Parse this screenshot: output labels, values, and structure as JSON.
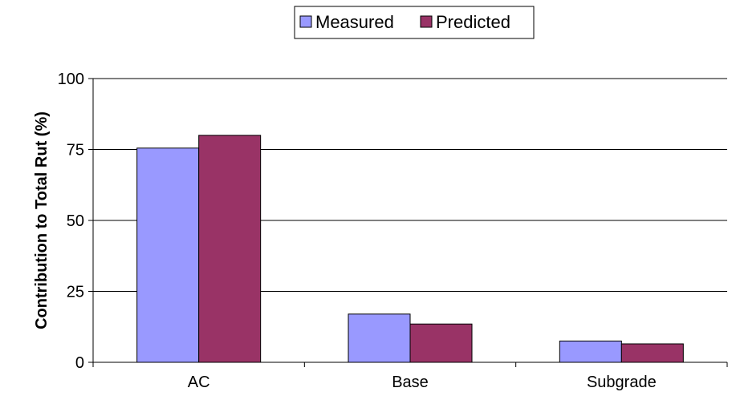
{
  "chart_data": {
    "type": "bar",
    "title": "",
    "xlabel": "",
    "ylabel": "Contribution to Total Rut (%)",
    "categories": [
      "AC",
      "Base",
      "Subgrade"
    ],
    "series": [
      {
        "name": "Measured",
        "values": [
          75.5,
          17,
          7.5
        ],
        "color": "#9999ff"
      },
      {
        "name": "Predicted",
        "values": [
          80,
          13.5,
          6.5
        ],
        "color": "#993366"
      }
    ],
    "ylim": [
      0,
      100
    ],
    "yticks": [
      0,
      25,
      50,
      75,
      100
    ],
    "grid": true,
    "legend_position": "top-center"
  }
}
